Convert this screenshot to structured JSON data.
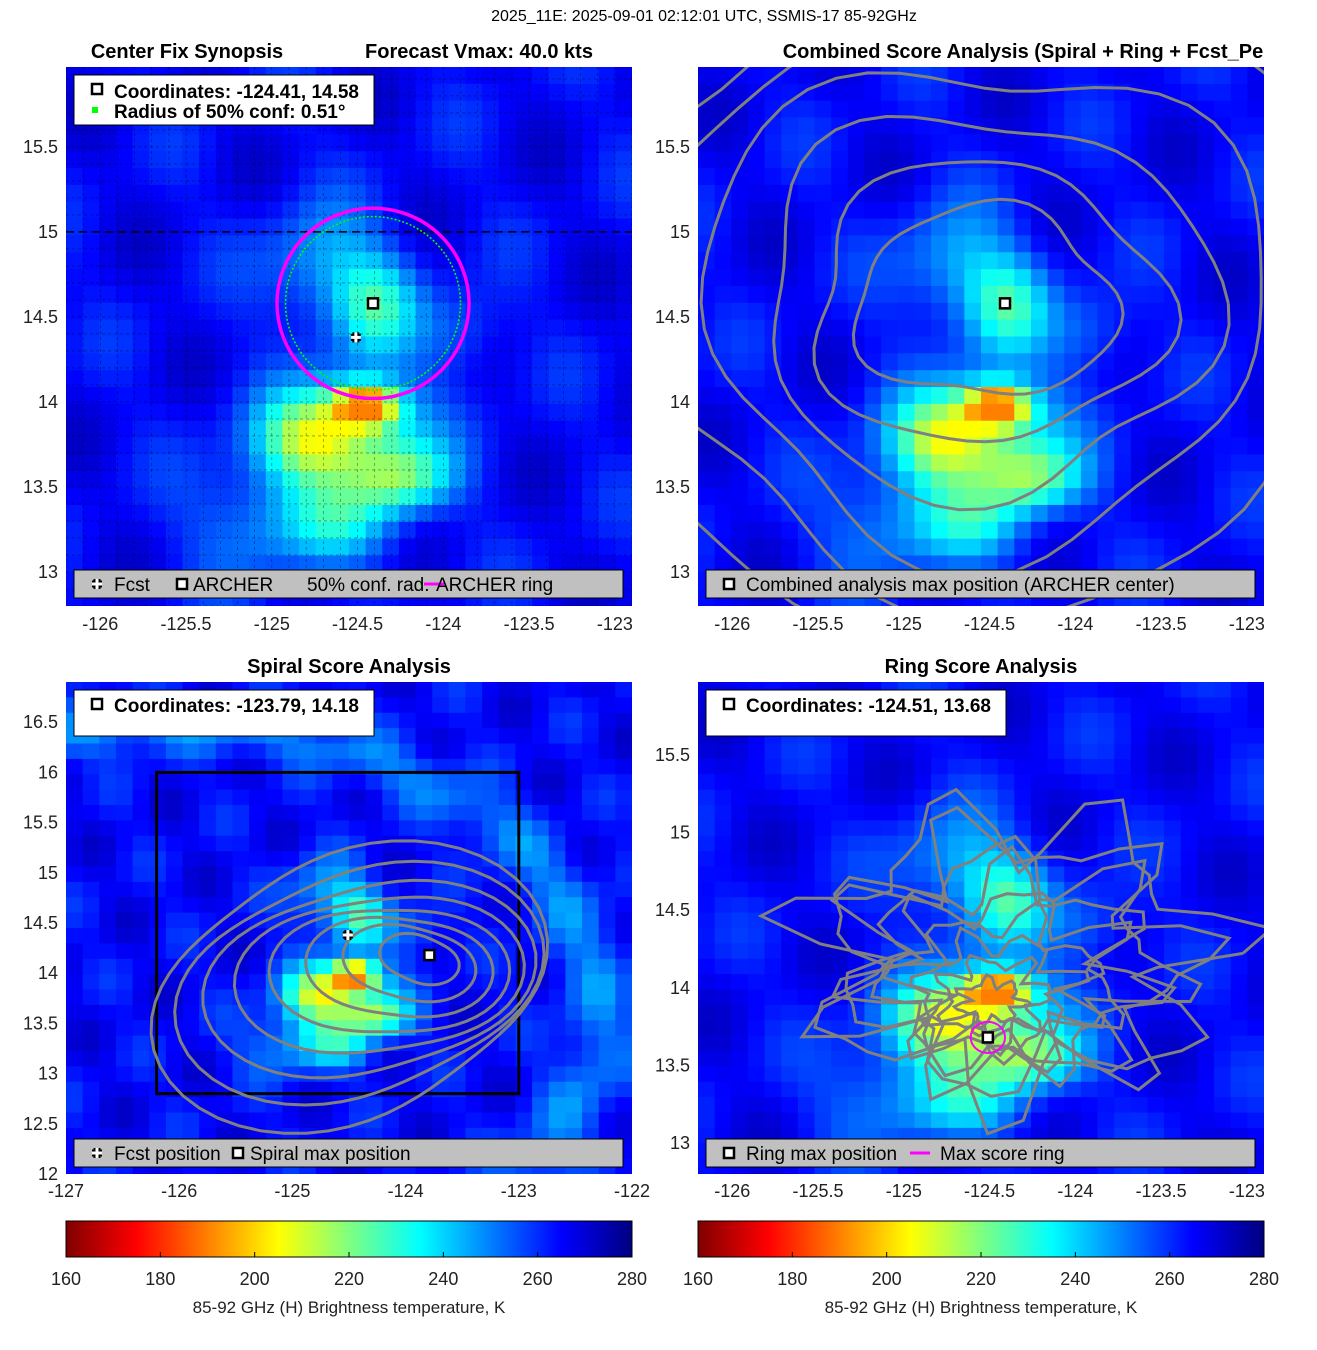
{
  "figure_title": "2025_11E: 2025-09-01 02:12:01 UTC, SSMIS-17 85-92GHz",
  "colors": {
    "marker_fill": "#ffffff",
    "marker_edge": "#000000",
    "ring": "#ff00ff",
    "confidence": "#00ff00",
    "contour": "#808080",
    "legend_bg": "#c0c0c0"
  },
  "colorbar": {
    "min": 160,
    "max": 280,
    "ticks": [
      160,
      180,
      200,
      220,
      240,
      260,
      280
    ],
    "label": "85-92 GHz (H) Brightness temperature, K",
    "stops": [
      "#800000",
      "#ff0000",
      "#ff8000",
      "#ffff00",
      "#80ff80",
      "#00ffff",
      "#0080ff",
      "#0000ff",
      "#000080"
    ]
  },
  "chart_data": [
    {
      "type": "heatmap",
      "title_left": "Center Fix Synopsis",
      "title_right": "Forecast Vmax: 40.0 kts",
      "xlim": [
        -126.2,
        -122.9
      ],
      "ylim": [
        12.8,
        15.97
      ],
      "xticks": [
        -126,
        -125.5,
        -125,
        -124.5,
        -124,
        -123.5,
        -123
      ],
      "yticks": [
        13,
        13.5,
        14,
        14.5,
        15,
        15.5
      ],
      "info": {
        "line1": "Coordinates: -124.41, 14.58",
        "line2": "Radius of 50% conf: 0.51°"
      },
      "legend": [
        "Fcst",
        "ARCHER",
        "50% conf. rad.",
        "ARCHER ring"
      ],
      "fcst": {
        "lon": -124.51,
        "lat": 14.38
      },
      "center": {
        "lon": -124.41,
        "lat": 14.58
      },
      "ring_radius_deg": 0.56,
      "conf_radius_deg": 0.51,
      "reference_lat": 15.0
    },
    {
      "type": "heatmap",
      "title": "Combined Score Analysis (Spiral + Ring + Fcst_Pe",
      "xlim": [
        -126.2,
        -122.9
      ],
      "ylim": [
        12.8,
        15.97
      ],
      "xticks": [
        -126,
        -125.5,
        -125,
        -124.5,
        -124,
        -123.5,
        -123
      ],
      "yticks": [
        13,
        13.5,
        14,
        14.5,
        15,
        15.5
      ],
      "legend": [
        "Combined analysis max position (ARCHER center)"
      ],
      "center": {
        "lon": -124.41,
        "lat": 14.58
      }
    },
    {
      "type": "heatmap",
      "title": "Spiral Score Analysis",
      "xlim": [
        -127.0,
        -122.0
      ],
      "ylim": [
        12.0,
        16.9
      ],
      "xticks": [
        -127,
        -126,
        -125,
        -124,
        -123,
        -122
      ],
      "yticks": [
        12,
        12.5,
        13,
        13.5,
        14,
        14.5,
        15,
        15.5,
        16,
        16.5
      ],
      "info": {
        "line1": "Coordinates: -123.79, 14.18"
      },
      "legend": [
        "Fcst position",
        "Spiral max position"
      ],
      "fcst": {
        "lon": -124.51,
        "lat": 14.38
      },
      "spiral_max": {
        "lon": -123.79,
        "lat": 14.18
      },
      "search_box": {
        "lon": [
          -126.2,
          -123.0
        ],
        "lat": [
          12.8,
          16.0
        ]
      }
    },
    {
      "type": "heatmap",
      "title": "Ring Score Analysis",
      "xlim": [
        -126.2,
        -122.9
      ],
      "ylim": [
        12.8,
        15.97
      ],
      "xticks": [
        -126,
        -125.5,
        -125,
        -124.5,
        -124,
        -123.5,
        -123
      ],
      "yticks": [
        13,
        13.5,
        14,
        14.5,
        15,
        15.5
      ],
      "info": {
        "line1": "Coordinates: -124.51, 13.68"
      },
      "legend": [
        "Ring max position",
        "Max score ring"
      ],
      "ring_max": {
        "lon": -124.51,
        "lat": 13.68
      },
      "ring_radius_deg": 0.1
    }
  ]
}
